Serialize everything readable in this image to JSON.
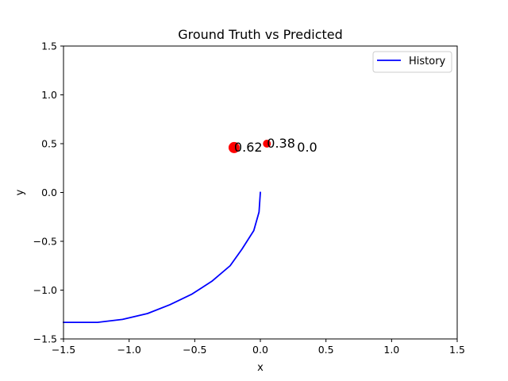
{
  "chart_data": {
    "type": "line",
    "title": "Ground Truth vs Predicted",
    "xlabel": "x",
    "ylabel": "y",
    "xlim": [
      -1.5,
      1.5
    ],
    "ylim": [
      -1.5,
      1.5
    ],
    "xticks": [
      -1.5,
      -1.0,
      -0.5,
      0.0,
      0.5,
      1.0,
      1.5
    ],
    "yticks": [
      -1.5,
      -1.0,
      -0.5,
      0.0,
      0.5,
      1.0,
      1.5
    ],
    "xtick_labels": [
      "−1.5",
      "−1.0",
      "−0.5",
      "0.0",
      "0.5",
      "1.0",
      "1.5"
    ],
    "ytick_labels": [
      "−1.5",
      "−1.0",
      "−0.5",
      "0.0",
      "0.5",
      "1.0",
      "1.5"
    ],
    "grid": false,
    "legend": {
      "position": "top-right",
      "entries": [
        "History"
      ]
    },
    "series": [
      {
        "name": "History",
        "type": "line",
        "color": "#0000ff",
        "points": [
          [
            0.0,
            0.0
          ],
          [
            -0.01,
            -0.2
          ],
          [
            -0.05,
            -0.39
          ],
          [
            -0.14,
            -0.58
          ],
          [
            -0.23,
            -0.75
          ],
          [
            -0.37,
            -0.91
          ],
          [
            -0.52,
            -1.04
          ],
          [
            -0.69,
            -1.15
          ],
          [
            -0.86,
            -1.24
          ],
          [
            -1.05,
            -1.3
          ],
          [
            -1.24,
            -1.33
          ],
          [
            -1.5,
            -1.33
          ]
        ]
      }
    ],
    "scatter_points": [
      {
        "x": -0.2,
        "y": 0.46,
        "label": "0.62",
        "size": 7,
        "color": "#ff0000"
      },
      {
        "x": 0.05,
        "y": 0.5,
        "label": "0.38",
        "size": 5,
        "color": "#ff0000"
      },
      {
        "x": 0.28,
        "y": 0.46,
        "label": "0.0",
        "size": 0,
        "color": "#ff0000"
      }
    ]
  }
}
